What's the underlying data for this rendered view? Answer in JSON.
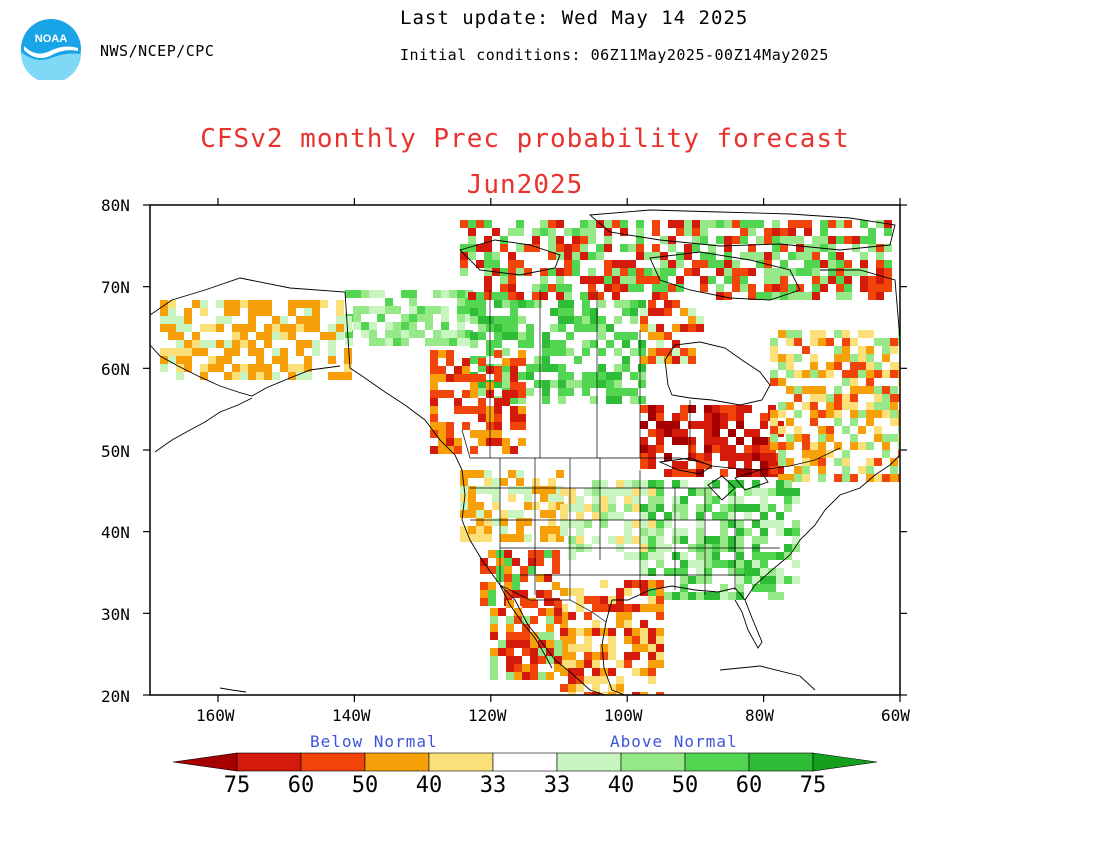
{
  "header": {
    "agency": "NWS/NCEP/CPC",
    "last_update": "Last update: Wed May 14 2025",
    "initial_conditions": "Initial conditions: 06Z11May2025-00Z14May2025",
    "logo_text": "NOAA"
  },
  "title": {
    "line1": "CFSv2 monthly Prec probability forecast",
    "line2": "Jun2025"
  },
  "map": {
    "lon_range": [
      -170,
      -60
    ],
    "lat_range": [
      20,
      80
    ],
    "lat_labels": [
      "80N",
      "70N",
      "60N",
      "50N",
      "40N",
      "30N",
      "20N"
    ],
    "lon_labels": [
      "160W",
      "140W",
      "120W",
      "100W",
      "80W",
      "60W"
    ],
    "colors": {
      "below_75": "#a40000",
      "below_60": "#d41a0a",
      "below_50": "#f0440a",
      "below_40": "#f7a00a",
      "below_33": "#fbe07a",
      "above_33": "#c8f5c0",
      "above_40": "#96e888",
      "above_50": "#52d652",
      "above_60": "#2fbd38",
      "above_75": "#14a01e"
    }
  },
  "legend": {
    "below_label": "Below Normal",
    "above_label": "Above Normal",
    "below_values": [
      "75",
      "60",
      "50",
      "40",
      "33"
    ],
    "above_values": [
      "33",
      "40",
      "50",
      "60",
      "75"
    ]
  }
}
